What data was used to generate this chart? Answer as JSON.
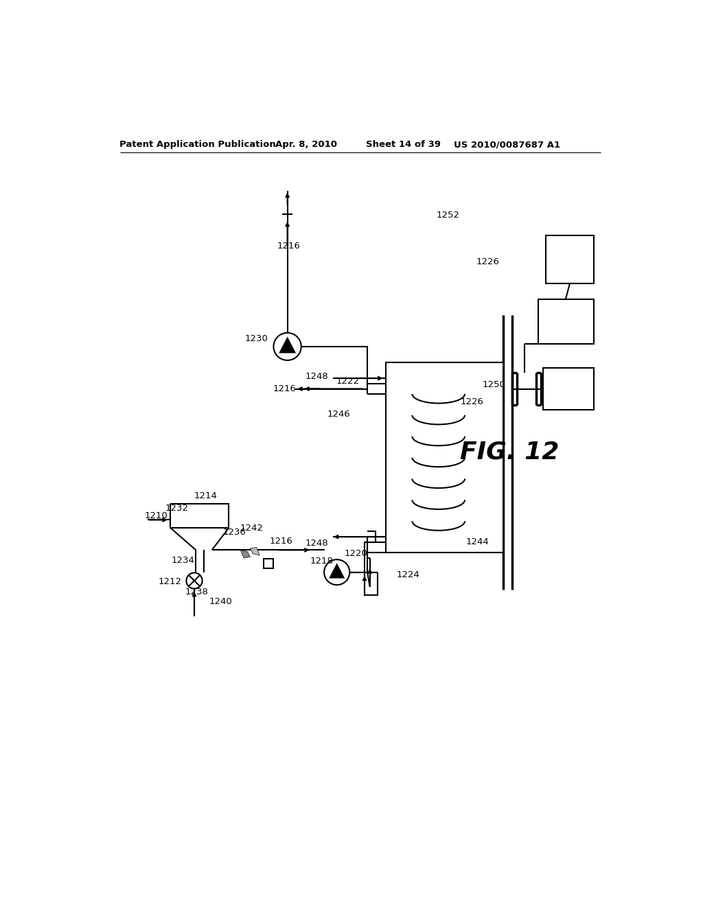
{
  "bg_color": "#ffffff",
  "header_left": "Patent Application Publication",
  "header_mid1": "Apr. 8, 2010",
  "header_mid2": "Sheet 14 of 39",
  "header_right": "US 2010/0087687 A1",
  "fig_label": "FIG. 12",
  "lw": 1.5,
  "fs_label": 9.5,
  "fs_header": 9.5,
  "fs_fig": 24
}
